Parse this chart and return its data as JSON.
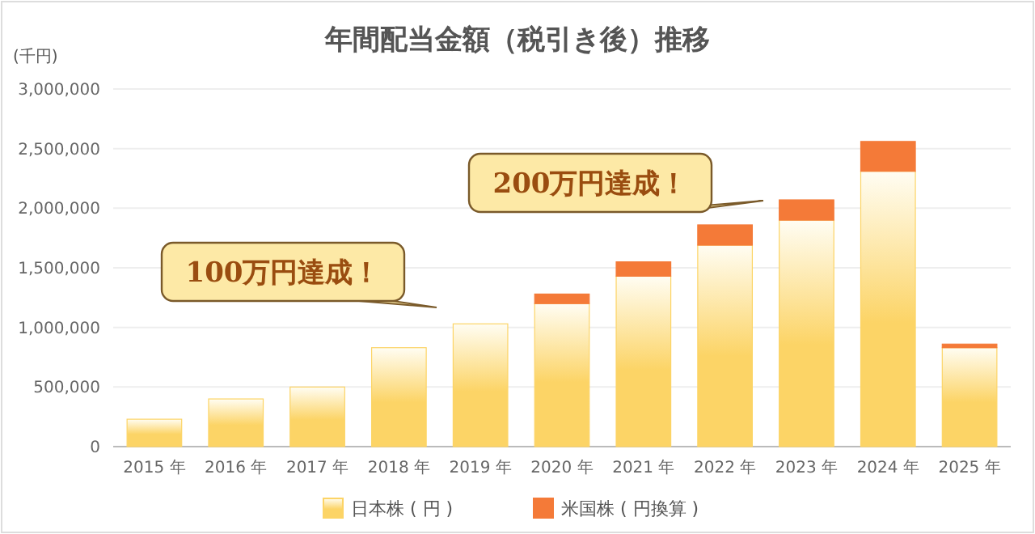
{
  "chart_data": {
    "type": "bar",
    "title": "年間配当金額（税引き後）推移",
    "ylabel": "(千円)",
    "stacked": true,
    "categories": [
      "2015 年",
      "2016 年",
      "2017 年",
      "2018 年",
      "2019 年",
      "2020 年",
      "2021 年",
      "2022 年",
      "2023 年",
      "2024 年",
      "2025 年"
    ],
    "series": [
      {
        "name": "日本株 ( 円 )",
        "color": "#fcd466",
        "values": [
          230000,
          400000,
          500000,
          830000,
          1030000,
          1200000,
          1430000,
          1690000,
          1900000,
          2310000,
          830000
        ]
      },
      {
        "name": "米国株 ( 円換算 )",
        "color": "#f47a38",
        "values": [
          null,
          null,
          null,
          null,
          null,
          80000,
          120000,
          170000,
          170000,
          250000,
          30000
        ]
      }
    ],
    "ylim": [
      0,
      3000000
    ],
    "yticks": [
      {
        "value": 0,
        "label": "0"
      },
      {
        "value": 500000,
        "label": "500,000"
      },
      {
        "value": 1000000,
        "label": "1,000,000"
      },
      {
        "value": 1500000,
        "label": "1,500,000"
      },
      {
        "value": 2000000,
        "label": "2,000,000"
      },
      {
        "value": 2500000,
        "label": "2,500,000"
      },
      {
        "value": 3000000,
        "label": "3,000,000"
      }
    ],
    "grid": "y",
    "legend": "bottom",
    "annotations": [
      "100万円達成！",
      "200万円達成！"
    ]
  }
}
